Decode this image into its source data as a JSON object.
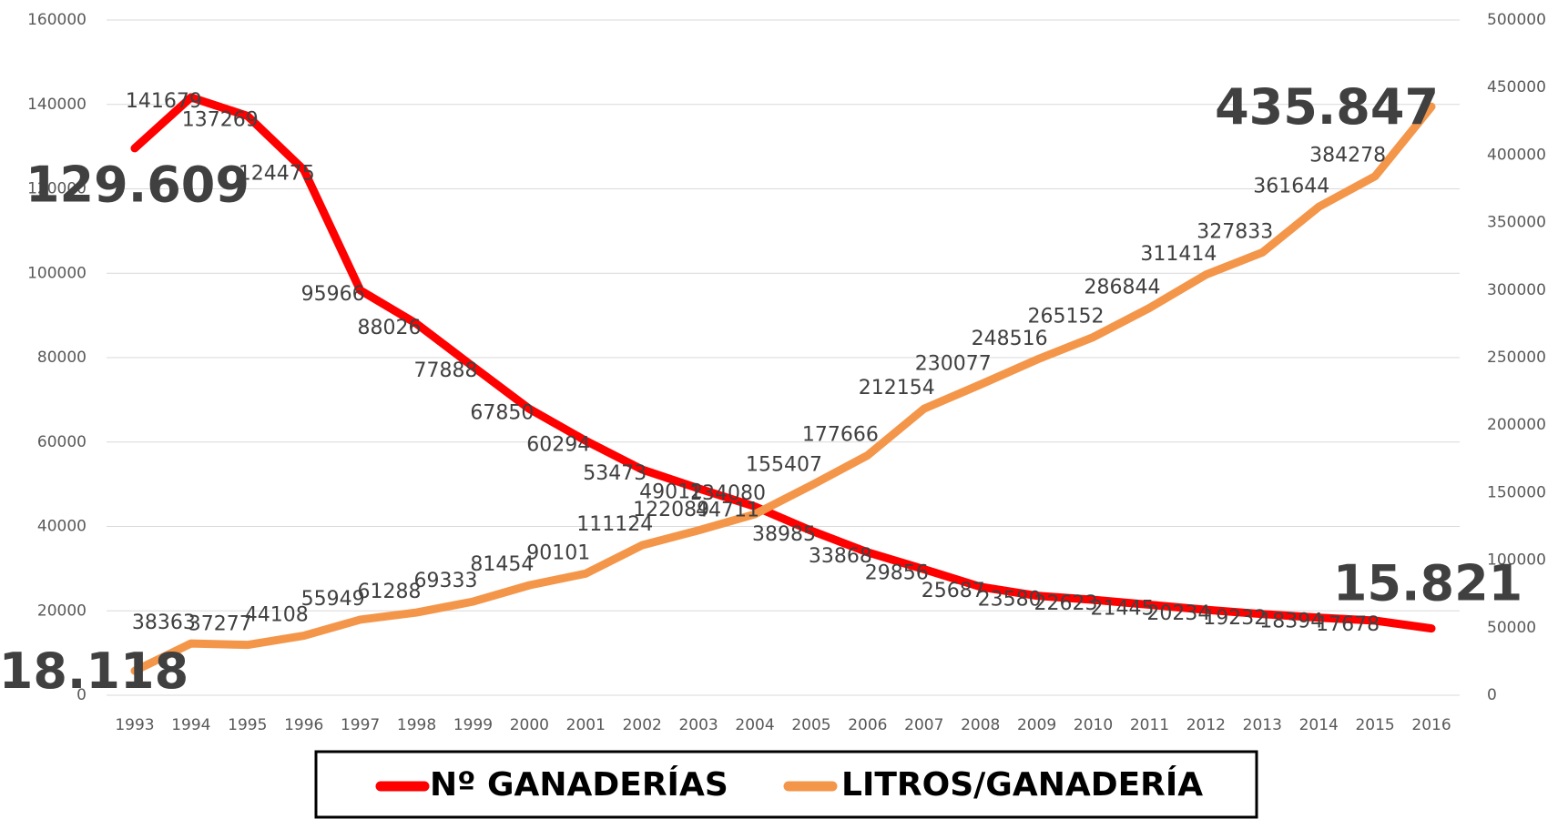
{
  "chart_data": {
    "type": "line",
    "categories": [
      "1993",
      "1994",
      "1995",
      "1996",
      "1997",
      "1998",
      "1999",
      "2000",
      "2001",
      "2002",
      "2003",
      "2004",
      "2005",
      "2006",
      "2007",
      "2008",
      "2009",
      "2010",
      "2011",
      "2012",
      "2013",
      "2014",
      "2015",
      "2016"
    ],
    "series": [
      {
        "name": "Nº GANADERÍAS",
        "color": "#ff0000",
        "values": [
          129609,
          141679,
          137269,
          124475,
          95966,
          88026,
          77888,
          67850,
          60294,
          53473,
          49012,
          44711,
          38985,
          33868,
          29856,
          25687,
          23580,
          22623,
          21445,
          20234,
          19232,
          18394,
          17678,
          15821
        ],
        "value_labels": [
          "129.609",
          "141679",
          "137269",
          "124475",
          "95966",
          "88026",
          "77888",
          "67850",
          "60294",
          "53473",
          "49012",
          "44711",
          "38985",
          "33868",
          "29856",
          "25687",
          "23580",
          "22623",
          "21445",
          "20234",
          "19232",
          "18394",
          "17678",
          "15.821"
        ]
      },
      {
        "name": "LITROS/GANADERÍA",
        "color": "#f4964a",
        "axis": "y2",
        "values": [
          18118,
          38363,
          37277,
          44108,
          55949,
          61288,
          69333,
          81454,
          90101,
          111124,
          122089,
          134080,
          155407,
          177666,
          212154,
          230077,
          248516,
          265152,
          286844,
          311414,
          327833,
          361644,
          384278,
          435847
        ],
        "value_labels": [
          "18.118",
          "38363",
          "37277",
          "44108",
          "55949",
          "61288",
          "69333",
          "81454",
          "90101",
          "111124",
          "122089",
          "134080",
          "155407",
          "177666",
          "212154",
          "230077",
          "248516",
          "265152",
          "286844",
          "311414",
          "327833",
          "361644",
          "384278",
          "435.847"
        ]
      }
    ],
    "ylim": [
      0,
      160000
    ],
    "yticks": [
      0,
      20000,
      40000,
      60000,
      80000,
      100000,
      120000,
      140000,
      160000
    ],
    "y2lim": [
      0,
      500000
    ],
    "y2ticks": [
      0,
      50000,
      100000,
      150000,
      200000,
      250000,
      300000,
      350000,
      400000,
      450000,
      500000
    ],
    "grid": true,
    "legend": "bottom"
  }
}
